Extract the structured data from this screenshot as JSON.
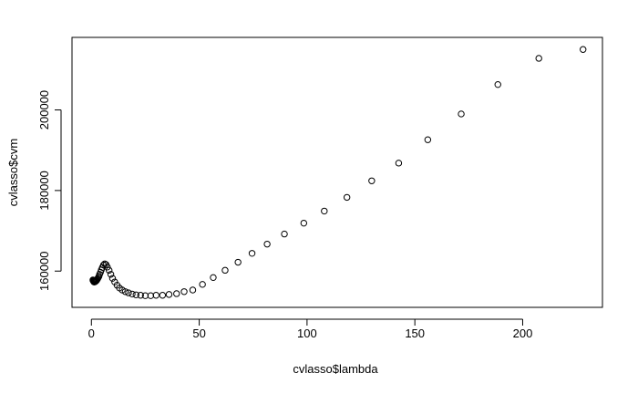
{
  "chart_data": {
    "type": "scatter",
    "title": "",
    "xlabel": "cvlasso$lambda",
    "ylabel": "cvlasso$cvm",
    "xlim": [
      -9,
      237
    ],
    "ylim": [
      151000,
      218000
    ],
    "x_ticks": [
      0,
      50,
      100,
      150,
      200
    ],
    "x_tick_labels": [
      "0",
      "50",
      "100",
      "150",
      "200"
    ],
    "y_ticks": [
      160000,
      180000,
      200000
    ],
    "y_tick_labels": [
      "160000",
      "180000",
      "200000"
    ],
    "grid": false,
    "marker": "open-circle",
    "colors": {
      "points": "#000000",
      "frame": "#000000",
      "background": "#ffffff"
    },
    "points": [
      [
        228,
        215000
      ],
      [
        207.5,
        212800
      ],
      [
        188.5,
        206300
      ],
      [
        171.5,
        199000
      ],
      [
        156,
        192600
      ],
      [
        142.5,
        186800
      ],
      [
        130,
        182400
      ],
      [
        118.5,
        178300
      ],
      [
        108,
        174900
      ],
      [
        98.5,
        171900
      ],
      [
        89.5,
        169200
      ],
      [
        81.5,
        166700
      ],
      [
        74.5,
        164400
      ],
      [
        68,
        162200
      ],
      [
        62,
        160200
      ],
      [
        56.5,
        158400
      ],
      [
        51.5,
        156700
      ],
      [
        47,
        155300
      ],
      [
        43,
        154900
      ],
      [
        39.5,
        154400
      ],
      [
        36,
        154200
      ],
      [
        33,
        154000
      ],
      [
        30,
        154000
      ],
      [
        27.5,
        153900
      ],
      [
        25,
        153900
      ],
      [
        22.8,
        154000
      ],
      [
        20.7,
        154100
      ],
      [
        18.9,
        154300
      ],
      [
        17.2,
        154600
      ],
      [
        15.7,
        154900
      ],
      [
        14.3,
        155300
      ],
      [
        13,
        155800
      ],
      [
        11.9,
        156500
      ],
      [
        10.8,
        157300
      ],
      [
        9.8,
        158200
      ],
      [
        9,
        159200
      ],
      [
        8.2,
        160200
      ],
      [
        7.4,
        161000
      ],
      [
        6.8,
        161600
      ],
      [
        6.2,
        161800
      ],
      [
        5.6,
        161500
      ],
      [
        5.1,
        160900
      ],
      [
        4.6,
        160300
      ],
      [
        4.2,
        159700
      ],
      [
        3.8,
        159200
      ],
      [
        3.5,
        158700
      ],
      [
        3.2,
        158400
      ],
      [
        2.9,
        158100
      ],
      [
        2.6,
        157900
      ],
      [
        2.4,
        157700
      ],
      [
        2.2,
        157600
      ],
      [
        2.0,
        157500
      ],
      [
        1.8,
        157400
      ],
      [
        1.6,
        157400
      ],
      [
        1.5,
        157300
      ],
      [
        1.3,
        157300
      ],
      [
        1.2,
        157300
      ],
      [
        1.1,
        157400
      ],
      [
        1.0,
        157500
      ],
      [
        0.9,
        157600
      ],
      [
        0.8,
        157700
      ],
      [
        0.7,
        157800
      ]
    ]
  }
}
